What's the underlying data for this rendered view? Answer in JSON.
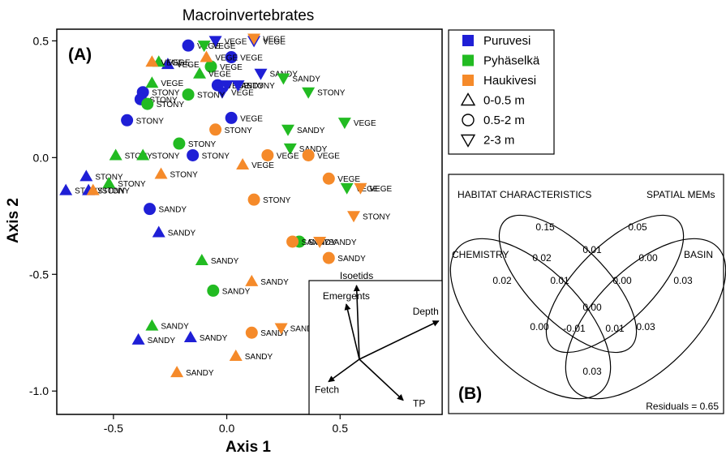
{
  "chart_data": [
    {
      "type": "scatter",
      "panel_label": "(A)",
      "title": "Macroinvertebrates",
      "xlabel": "Axis 1",
      "ylabel": "Axis 2",
      "xlim": [
        -0.75,
        0.95
      ],
      "ylim": [
        -1.1,
        0.55
      ],
      "xticks": [
        -0.5,
        0.0,
        0.5
      ],
      "yticks": [
        0.5,
        0.0,
        -0.5,
        -1.0
      ],
      "xtick_labels": [
        "-0.5",
        "0.0",
        "0.5"
      ],
      "ytick_labels": [
        "0.5",
        "0.0",
        "-0.5",
        "-1.0"
      ],
      "legend_position": "top-right",
      "legend": [
        {
          "label": "Puruvesi",
          "color": "#1f1fd6",
          "marker": "square"
        },
        {
          "label": "Pyhäselkä",
          "color": "#22bb22",
          "marker": "square"
        },
        {
          "label": "Haukivesi",
          "color": "#f58a2a",
          "marker": "square"
        },
        {
          "label": "0-0.5 m",
          "marker": "triangle-up"
        },
        {
          "label": "0.5-2 m",
          "marker": "circle"
        },
        {
          "label": "2-3 m",
          "marker": "triangle-down"
        }
      ],
      "series": [
        {
          "name": "Puruvesi",
          "color": "#1f1fd6",
          "points": [
            {
              "x": -0.17,
              "y": 0.48,
              "shape": "circle",
              "label": "VEGE"
            },
            {
              "x": -0.05,
              "y": 0.5,
              "shape": "triangle-down",
              "label": "VEGE"
            },
            {
              "x": 0.12,
              "y": 0.5,
              "shape": "triangle-down",
              "label": "VEGE"
            },
            {
              "x": 0.02,
              "y": 0.43,
              "shape": "circle",
              "label": "VEGE"
            },
            {
              "x": -0.26,
              "y": 0.4,
              "shape": "triangle-up",
              "label": "VEGE"
            },
            {
              "x": -0.04,
              "y": 0.31,
              "shape": "circle",
              "label": "VEGE"
            },
            {
              "x": 0.0,
              "y": 0.31,
              "shape": "triangle-down",
              "label": "SANDY"
            },
            {
              "x": -0.02,
              "y": 0.28,
              "shape": "triangle-down",
              "label": "VEGE"
            },
            {
              "x": 0.05,
              "y": 0.31,
              "shape": "triangle-down",
              "label": "STONY"
            },
            {
              "x": 0.15,
              "y": 0.36,
              "shape": "triangle-down",
              "label": "SANDY"
            },
            {
              "x": -0.37,
              "y": 0.28,
              "shape": "circle",
              "label": "STONY"
            },
            {
              "x": -0.38,
              "y": 0.25,
              "shape": "circle",
              "label": "STONY"
            },
            {
              "x": -0.44,
              "y": 0.16,
              "shape": "circle",
              "label": "STONY"
            },
            {
              "x": 0.02,
              "y": 0.17,
              "shape": "circle",
              "label": "VEGE"
            },
            {
              "x": -0.15,
              "y": 0.01,
              "shape": "circle",
              "label": "STONY"
            },
            {
              "x": -0.62,
              "y": -0.08,
              "shape": "triangle-up",
              "label": "STONY"
            },
            {
              "x": -0.71,
              "y": -0.14,
              "shape": "triangle-up",
              "label": "STONY"
            },
            {
              "x": -0.61,
              "y": -0.14,
              "shape": "triangle-up",
              "label": "STONY"
            },
            {
              "x": -0.34,
              "y": -0.22,
              "shape": "circle",
              "label": "SANDY"
            },
            {
              "x": -0.3,
              "y": -0.32,
              "shape": "triangle-up",
              "label": "SANDY"
            },
            {
              "x": -0.39,
              "y": -0.78,
              "shape": "triangle-up",
              "label": "SANDY"
            },
            {
              "x": -0.16,
              "y": -0.77,
              "shape": "triangle-up",
              "label": "SANDY"
            }
          ]
        },
        {
          "name": "Pyhäselkä",
          "color": "#22bb22",
          "points": [
            {
              "x": -0.3,
              "y": 0.41,
              "shape": "triangle-up",
              "label": "VEGE"
            },
            {
              "x": -0.1,
              "y": 0.48,
              "shape": "triangle-down",
              "label": "VEGE"
            },
            {
              "x": -0.07,
              "y": 0.39,
              "shape": "circle",
              "label": "VEGE"
            },
            {
              "x": -0.12,
              "y": 0.36,
              "shape": "triangle-up",
              "label": "VEGE"
            },
            {
              "x": -0.33,
              "y": 0.32,
              "shape": "triangle-up",
              "label": "VEGE"
            },
            {
              "x": -0.17,
              "y": 0.27,
              "shape": "circle",
              "label": "STONY"
            },
            {
              "x": -0.35,
              "y": 0.23,
              "shape": "circle",
              "label": "STONY"
            },
            {
              "x": 0.25,
              "y": 0.34,
              "shape": "triangle-down",
              "label": "SANDY"
            },
            {
              "x": 0.36,
              "y": 0.28,
              "shape": "triangle-down",
              "label": "STONY"
            },
            {
              "x": 0.27,
              "y": 0.12,
              "shape": "triangle-down",
              "label": "SANDY"
            },
            {
              "x": 0.28,
              "y": 0.04,
              "shape": "triangle-down",
              "label": "SANDY"
            },
            {
              "x": 0.52,
              "y": 0.15,
              "shape": "triangle-down",
              "label": "VEGE"
            },
            {
              "x": -0.21,
              "y": 0.06,
              "shape": "circle",
              "label": "STONY"
            },
            {
              "x": -0.49,
              "y": 0.01,
              "shape": "triangle-up",
              "label": "STONY"
            },
            {
              "x": -0.37,
              "y": 0.01,
              "shape": "triangle-up",
              "label": "STONY"
            },
            {
              "x": -0.52,
              "y": -0.11,
              "shape": "triangle-up",
              "label": "STONY"
            },
            {
              "x": 0.53,
              "y": -0.13,
              "shape": "triangle-down",
              "label": "VEGE"
            },
            {
              "x": 0.32,
              "y": -0.36,
              "shape": "circle",
              "label": "SANDY"
            },
            {
              "x": -0.11,
              "y": -0.44,
              "shape": "triangle-up",
              "label": "SANDY"
            },
            {
              "x": -0.06,
              "y": -0.57,
              "shape": "circle",
              "label": "SANDY"
            },
            {
              "x": -0.33,
              "y": -0.72,
              "shape": "triangle-up",
              "label": "SANDY"
            }
          ]
        },
        {
          "name": "Haukivesi",
          "color": "#f58a2a",
          "points": [
            {
              "x": -0.33,
              "y": 0.41,
              "shape": "triangle-up",
              "label": "VEGE"
            },
            {
              "x": -0.09,
              "y": 0.43,
              "shape": "triangle-up",
              "label": "VEGE"
            },
            {
              "x": 0.12,
              "y": 0.51,
              "shape": "triangle-down",
              "label": "VEGE"
            },
            {
              "x": -0.05,
              "y": 0.12,
              "shape": "circle",
              "label": "STONY"
            },
            {
              "x": 0.18,
              "y": 0.01,
              "shape": "circle",
              "label": "VEGE"
            },
            {
              "x": 0.36,
              "y": 0.01,
              "shape": "circle",
              "label": "VEGE"
            },
            {
              "x": 0.07,
              "y": -0.03,
              "shape": "triangle-up",
              "label": "VEGE"
            },
            {
              "x": -0.29,
              "y": -0.07,
              "shape": "triangle-up",
              "label": "STONY"
            },
            {
              "x": 0.45,
              "y": -0.09,
              "shape": "circle",
              "label": "VEGE"
            },
            {
              "x": 0.59,
              "y": -0.13,
              "shape": "triangle-down",
              "label": "VEGE"
            },
            {
              "x": 0.12,
              "y": -0.18,
              "shape": "circle",
              "label": "STONY"
            },
            {
              "x": -0.59,
              "y": -0.14,
              "shape": "triangle-up",
              "label": "STONY"
            },
            {
              "x": 0.56,
              "y": -0.25,
              "shape": "triangle-down",
              "label": "STONY"
            },
            {
              "x": 0.29,
              "y": -0.36,
              "shape": "circle",
              "label": "SANDY"
            },
            {
              "x": 0.41,
              "y": -0.36,
              "shape": "triangle-down",
              "label": "SANDY"
            },
            {
              "x": 0.45,
              "y": -0.43,
              "shape": "circle",
              "label": "SANDY"
            },
            {
              "x": 0.11,
              "y": -0.53,
              "shape": "triangle-up",
              "label": "SANDY"
            },
            {
              "x": 0.11,
              "y": -0.75,
              "shape": "circle",
              "label": "SANDY"
            },
            {
              "x": 0.24,
              "y": -0.73,
              "shape": "triangle-down",
              "label": "SANDY"
            },
            {
              "x": 0.04,
              "y": -0.85,
              "shape": "triangle-up",
              "label": "SANDY"
            },
            {
              "x": -0.22,
              "y": -0.92,
              "shape": "triangle-up",
              "label": "SANDY"
            }
          ]
        }
      ],
      "vectors": [
        {
          "label": "Isoetids",
          "x": -0.03,
          "y": 0.79
        },
        {
          "label": "Emergents",
          "x": -0.14,
          "y": 0.59
        },
        {
          "label": "Depth",
          "x": 0.85,
          "y": 0.41
        },
        {
          "label": "Fetch",
          "x": -0.33,
          "y": -0.24
        },
        {
          "label": "TP",
          "x": 0.47,
          "y": -0.44
        }
      ]
    },
    {
      "type": "venn",
      "panel_label": "(B)",
      "sets": [
        "HABITAT  CHARACTERISTICS",
        "SPATIAL MEMs",
        "CHEMISTRY",
        "BASIN"
      ],
      "values": [
        "0.15",
        "0.05",
        "0.02",
        "0.01",
        "0.00",
        "0.02",
        "0.03",
        "0.01",
        "0.00",
        "0.00",
        "0.00",
        "-0.01",
        "0.01",
        "0.03",
        "0.03"
      ],
      "residuals": "Residuals = 0.65"
    }
  ]
}
